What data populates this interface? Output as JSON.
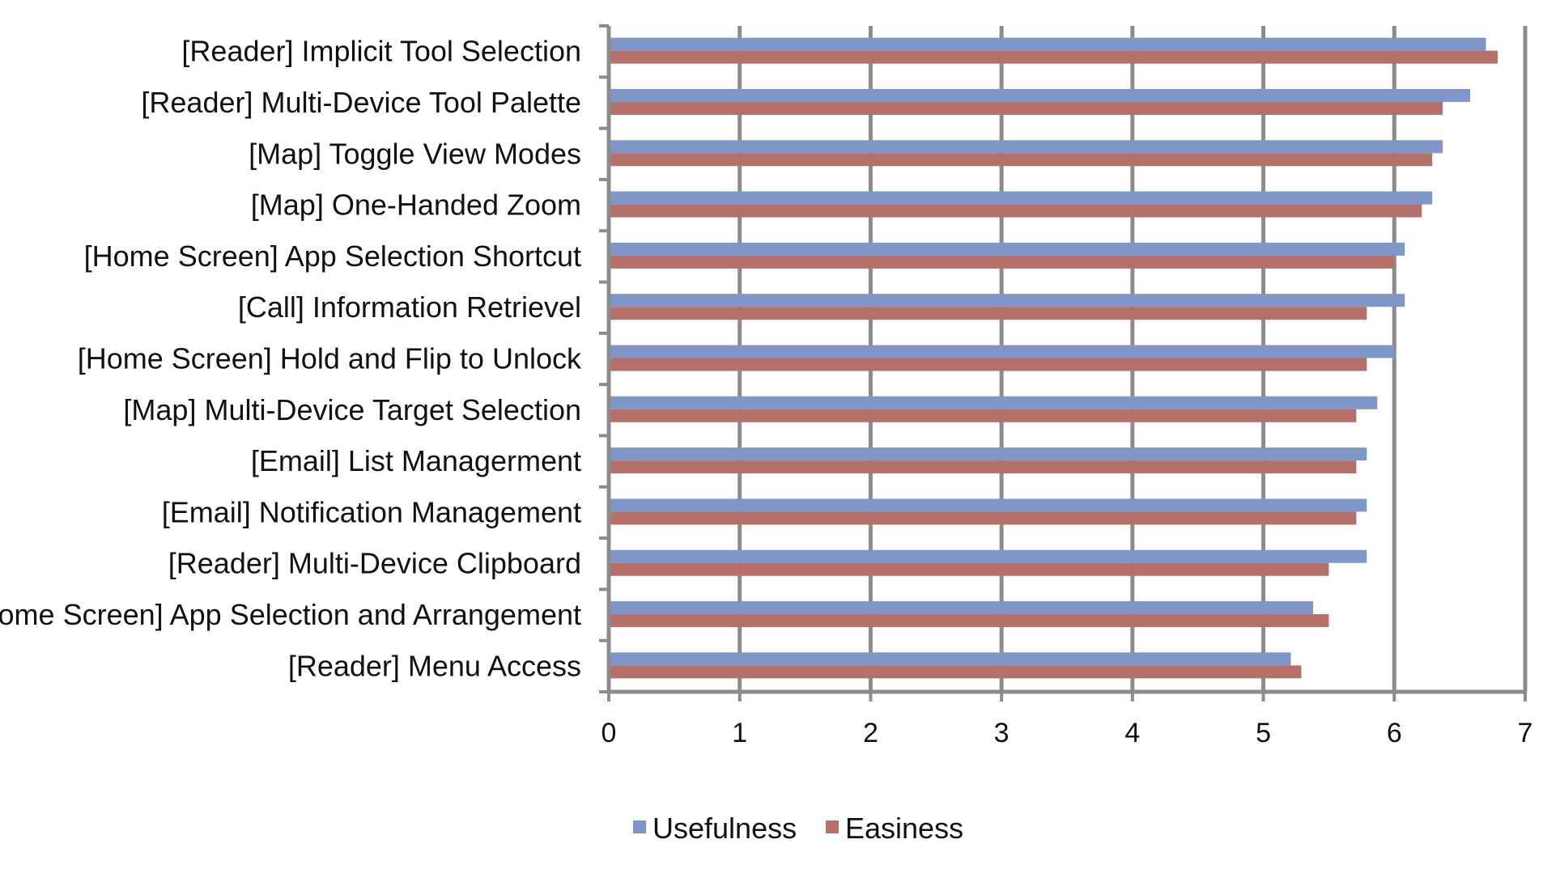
{
  "chart_data": {
    "type": "bar",
    "orientation": "horizontal",
    "categories": [
      "[Reader] Implicit Tool Selection",
      "[Reader] Multi-Device Tool Palette",
      "[Map] Toggle View Modes",
      "[Map] One-Handed Zoom",
      "[Home Screen] App Selection Shortcut",
      "[Call] Information Retrievel",
      "[Home Screen] Hold and Flip to Unlock",
      "[Map] Multi-Device Target Selection",
      "[Email] List Managerment",
      "[Email] Notification Management",
      "[Reader] Multi-Device Clipboard",
      "[Home Screen] App Selection and Arrangement",
      "[Reader] Menu Access"
    ],
    "series": [
      {
        "name": "Usefulness",
        "color": "#7f96c8",
        "values": [
          6.7,
          6.58,
          6.37,
          6.29,
          6.08,
          6.08,
          6.0,
          5.87,
          5.79,
          5.79,
          5.79,
          5.38,
          5.21
        ]
      },
      {
        "name": "Easiness",
        "color": "#b5706a",
        "values": [
          6.79,
          6.37,
          6.29,
          6.21,
          6.0,
          5.79,
          5.79,
          5.71,
          5.71,
          5.71,
          5.5,
          5.5,
          5.29
        ]
      }
    ],
    "x_ticks": [
      "0",
      "1",
      "2",
      "3",
      "4",
      "5",
      "6",
      "7"
    ],
    "xlim": [
      0,
      7
    ],
    "grid": "vertical",
    "legend_position": "bottom-center",
    "title": "",
    "xlabel": "",
    "ylabel": ""
  }
}
